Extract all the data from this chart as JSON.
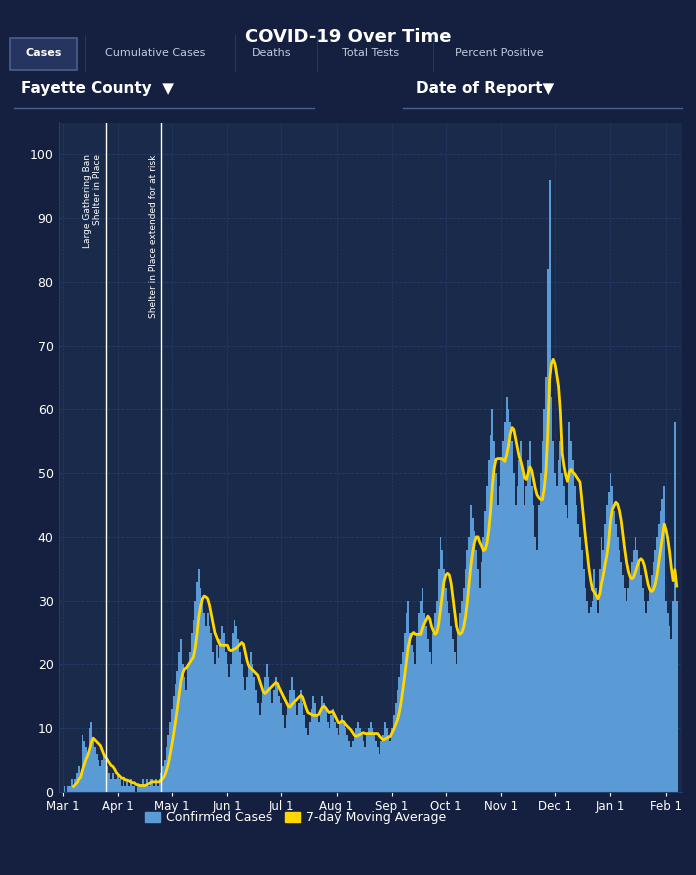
{
  "title": "COVID-19 Over Time",
  "bg_color": "#152040",
  "plot_bg_color": "#1a2a4a",
  "tab_labels": [
    "Cases",
    "Cumulative Cases",
    "Deaths",
    "Total Tests",
    "Percent Positive"
  ],
  "active_tab": "Cases",
  "county_label": "Fayette County",
  "date_label": "Date of Report",
  "yticks": [
    0,
    10,
    20,
    30,
    40,
    50,
    60,
    70,
    80,
    90,
    100
  ],
  "xtick_labels": [
    "Mar 1",
    "Apr 1",
    "May 1",
    "Jun 1",
    "Jul 1",
    "Aug 1",
    "Sep 1",
    "Oct 1",
    "Nov 1",
    "Dec 1",
    "Jan 1",
    "Feb 1"
  ],
  "xtick_positions": [
    0,
    31,
    61,
    92,
    122,
    153,
    184,
    214,
    245,
    275,
    306,
    337
  ],
  "vline1_label": "Large Gathering Ban\nShelter in Place",
  "vline2_label": "Shelter in Place extended for at risk",
  "bar_color": "#5b9bd5",
  "ma_color": "#ffd700",
  "legend_bar_label": "Confirmed Cases",
  "legend_ma_label": "7-day Moving Average",
  "text_color": "#ffffff",
  "grid_color": "#263d6b",
  "vline1_idx": 24,
  "vline2_idx": 55,
  "confirmed_cases": [
    0,
    1,
    0,
    1,
    1,
    2,
    1,
    2,
    3,
    4,
    3,
    9,
    8,
    7,
    6,
    10,
    11,
    8,
    7,
    6,
    5,
    4,
    5,
    6,
    5,
    4,
    3,
    2,
    3,
    2,
    2,
    3,
    2,
    1,
    2,
    1,
    2,
    1,
    2,
    1,
    1,
    0,
    1,
    1,
    1,
    2,
    1,
    2,
    1,
    2,
    2,
    1,
    2,
    1,
    2,
    3,
    4,
    5,
    7,
    9,
    11,
    13,
    15,
    17,
    19,
    22,
    24,
    20,
    18,
    16,
    20,
    22,
    25,
    27,
    30,
    33,
    35,
    32,
    30,
    28,
    26,
    28,
    26,
    25,
    22,
    20,
    23,
    21,
    24,
    26,
    25,
    22,
    20,
    18,
    20,
    25,
    27,
    26,
    24,
    22,
    20,
    18,
    16,
    18,
    20,
    22,
    20,
    18,
    16,
    14,
    12,
    14,
    16,
    18,
    20,
    18,
    16,
    14,
    16,
    18,
    17,
    15,
    14,
    12,
    10,
    12,
    14,
    16,
    18,
    16,
    14,
    12,
    14,
    16,
    14,
    12,
    10,
    9,
    11,
    13,
    15,
    14,
    12,
    11,
    13,
    15,
    14,
    13,
    11,
    10,
    12,
    13,
    11,
    10,
    9,
    11,
    12,
    11,
    10,
    9,
    8,
    7,
    8,
    9,
    10,
    11,
    10,
    9,
    8,
    7,
    9,
    10,
    11,
    10,
    9,
    8,
    7,
    6,
    8,
    9,
    11,
    10,
    9,
    8,
    10,
    12,
    14,
    16,
    18,
    20,
    22,
    25,
    28,
    30,
    25,
    23,
    22,
    20,
    25,
    28,
    30,
    32,
    28,
    26,
    24,
    22,
    20,
    25,
    28,
    30,
    35,
    40,
    38,
    35,
    32,
    30,
    28,
    26,
    24,
    22,
    20,
    25,
    28,
    30,
    32,
    35,
    38,
    40,
    45,
    43,
    41,
    38,
    35,
    32,
    36,
    40,
    44,
    48,
    52,
    56,
    60,
    55,
    50,
    45,
    48,
    52,
    55,
    58,
    62,
    60,
    58,
    55,
    50,
    45,
    48,
    52,
    55,
    50,
    45,
    48,
    52,
    55,
    48,
    45,
    40,
    38,
    45,
    50,
    55,
    60,
    65,
    82,
    96,
    62,
    55,
    50,
    48,
    52,
    55,
    50,
    48,
    45,
    43,
    58,
    55,
    52,
    48,
    45,
    42,
    40,
    38,
    35,
    32,
    30,
    28,
    29,
    30,
    35,
    32,
    28,
    35,
    40,
    38,
    42,
    45,
    47,
    50,
    48,
    44,
    42,
    40,
    38,
    36,
    34,
    32,
    30,
    32,
    34,
    36,
    38,
    40,
    38,
    36,
    34,
    32,
    30,
    28,
    30,
    32,
    34,
    36,
    38,
    40,
    42,
    44,
    46,
    48,
    30,
    28,
    26,
    24,
    30,
    58,
    30
  ]
}
